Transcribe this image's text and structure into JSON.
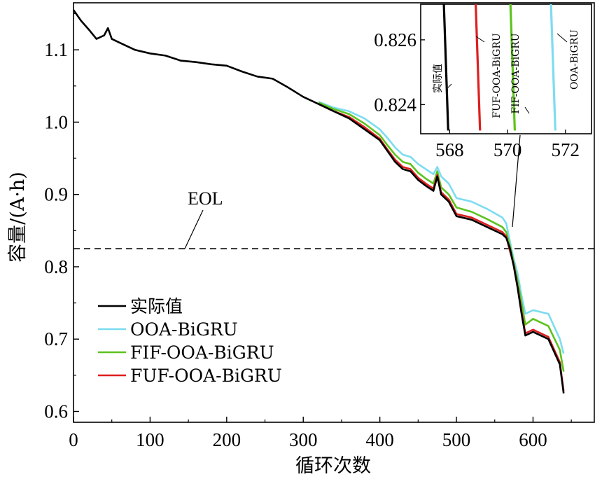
{
  "chart_data": {
    "type": "line",
    "xlabel": "循环次数",
    "ylabel": "容量/(A·h)",
    "xlim": [
      0,
      680
    ],
    "ylim": [
      0.585,
      1.165
    ],
    "xticks": [
      "0",
      "100",
      "200",
      "300",
      "400",
      "500",
      "600"
    ],
    "yticks": [
      "0.6",
      "0.7",
      "0.8",
      "0.9",
      "1.0",
      "1.1"
    ],
    "xtick_values": [
      0,
      100,
      200,
      300,
      400,
      500,
      600
    ],
    "ytick_values": [
      0.6,
      0.7,
      0.8,
      0.9,
      1.0,
      1.1
    ],
    "legend_position": "lower-left",
    "grid": false,
    "eol": {
      "label": "EOL",
      "value": 0.825
    },
    "series": [
      {
        "name": "实际值",
        "color": "#000000",
        "x": [
          0,
          10,
          20,
          30,
          40,
          45,
          50,
          60,
          80,
          100,
          120,
          140,
          160,
          180,
          200,
          220,
          240,
          260,
          280,
          300,
          320,
          340,
          360,
          380,
          400,
          410,
          420,
          430,
          440,
          450,
          460,
          470,
          475,
          480,
          490,
          500,
          520,
          540,
          560,
          565,
          570,
          575,
          580,
          585,
          590,
          600,
          620,
          635,
          640
        ],
        "y": [
          1.155,
          1.14,
          1.128,
          1.115,
          1.12,
          1.13,
          1.115,
          1.11,
          1.1,
          1.095,
          1.092,
          1.085,
          1.083,
          1.08,
          1.078,
          1.07,
          1.063,
          1.06,
          1.048,
          1.035,
          1.025,
          1.015,
          1.005,
          0.99,
          0.975,
          0.96,
          0.945,
          0.935,
          0.932,
          0.92,
          0.912,
          0.905,
          0.925,
          0.9,
          0.89,
          0.87,
          0.865,
          0.855,
          0.845,
          0.84,
          0.825,
          0.8,
          0.77,
          0.735,
          0.705,
          0.71,
          0.7,
          0.665,
          0.625
        ]
      },
      {
        "name": "OOA-BiGRU",
        "color": "#7ddcf0",
        "x": [
          320,
          340,
          360,
          380,
          400,
          410,
          420,
          430,
          440,
          450,
          460,
          470,
          475,
          480,
          490,
          500,
          520,
          540,
          560,
          565,
          571.8,
          575,
          580,
          585,
          590,
          600,
          620,
          635,
          640
        ],
        "y": [
          1.028,
          1.02,
          1.015,
          1.005,
          0.99,
          0.978,
          0.965,
          0.955,
          0.952,
          0.942,
          0.935,
          0.928,
          0.938,
          0.925,
          0.915,
          0.895,
          0.89,
          0.88,
          0.868,
          0.86,
          0.825,
          0.81,
          0.79,
          0.76,
          0.735,
          0.74,
          0.735,
          0.7,
          0.68
        ]
      },
      {
        "name": "FIF-OOA-BiGRU",
        "color": "#5cc31e",
        "x": [
          320,
          340,
          360,
          380,
          400,
          410,
          420,
          430,
          440,
          450,
          460,
          470,
          475,
          480,
          490,
          500,
          520,
          540,
          560,
          565,
          570.8,
          575,
          580,
          585,
          590,
          600,
          620,
          635,
          640
        ],
        "y": [
          1.027,
          1.018,
          1.011,
          0.998,
          0.982,
          0.968,
          0.955,
          0.945,
          0.942,
          0.93,
          0.922,
          0.915,
          0.932,
          0.91,
          0.9,
          0.882,
          0.876,
          0.866,
          0.855,
          0.848,
          0.825,
          0.805,
          0.78,
          0.75,
          0.72,
          0.728,
          0.718,
          0.685,
          0.655
        ]
      },
      {
        "name": "FUF-OOA-BiGRU",
        "color": "#dd1f1f",
        "x": [
          320,
          340,
          360,
          380,
          400,
          410,
          420,
          430,
          440,
          450,
          460,
          470,
          475,
          480,
          490,
          500,
          520,
          540,
          560,
          565,
          569,
          575,
          580,
          585,
          590,
          600,
          620,
          635,
          640
        ],
        "y": [
          1.025,
          1.015,
          1.007,
          0.993,
          0.977,
          0.962,
          0.948,
          0.938,
          0.935,
          0.923,
          0.915,
          0.908,
          0.927,
          0.903,
          0.893,
          0.873,
          0.868,
          0.858,
          0.848,
          0.842,
          0.825,
          0.802,
          0.772,
          0.738,
          0.708,
          0.713,
          0.703,
          0.668,
          0.628
        ]
      }
    ],
    "inset": {
      "xlim": [
        567,
        572.9
      ],
      "ylim": [
        0.8231,
        0.8271
      ],
      "xticks": [
        "568",
        "570",
        "572"
      ],
      "yticks": [
        "0.824",
        "0.826"
      ],
      "xtick_values": [
        568,
        570,
        572
      ],
      "ytick_values": [
        0.824,
        0.826
      ],
      "series_labels": [
        "实际值",
        "FUF-OOA-BiGRU",
        "FIF-OOA-BiGRU",
        "OOA-BiGRU"
      ],
      "lines": [
        {
          "color": "#000000",
          "x": [
            567.8,
            567.95
          ],
          "y": [
            0.8271,
            0.8232
          ]
        },
        {
          "color": "#dd1f1f",
          "x": [
            568.9,
            569.05
          ],
          "y": [
            0.8271,
            0.8232
          ]
        },
        {
          "color": "#5cc31e",
          "x": [
            570.1,
            570.25
          ],
          "y": [
            0.8271,
            0.8232
          ]
        },
        {
          "color": "#7ddcf0",
          "x": [
            571.5,
            571.65
          ],
          "y": [
            0.8271,
            0.8232
          ]
        }
      ]
    }
  }
}
